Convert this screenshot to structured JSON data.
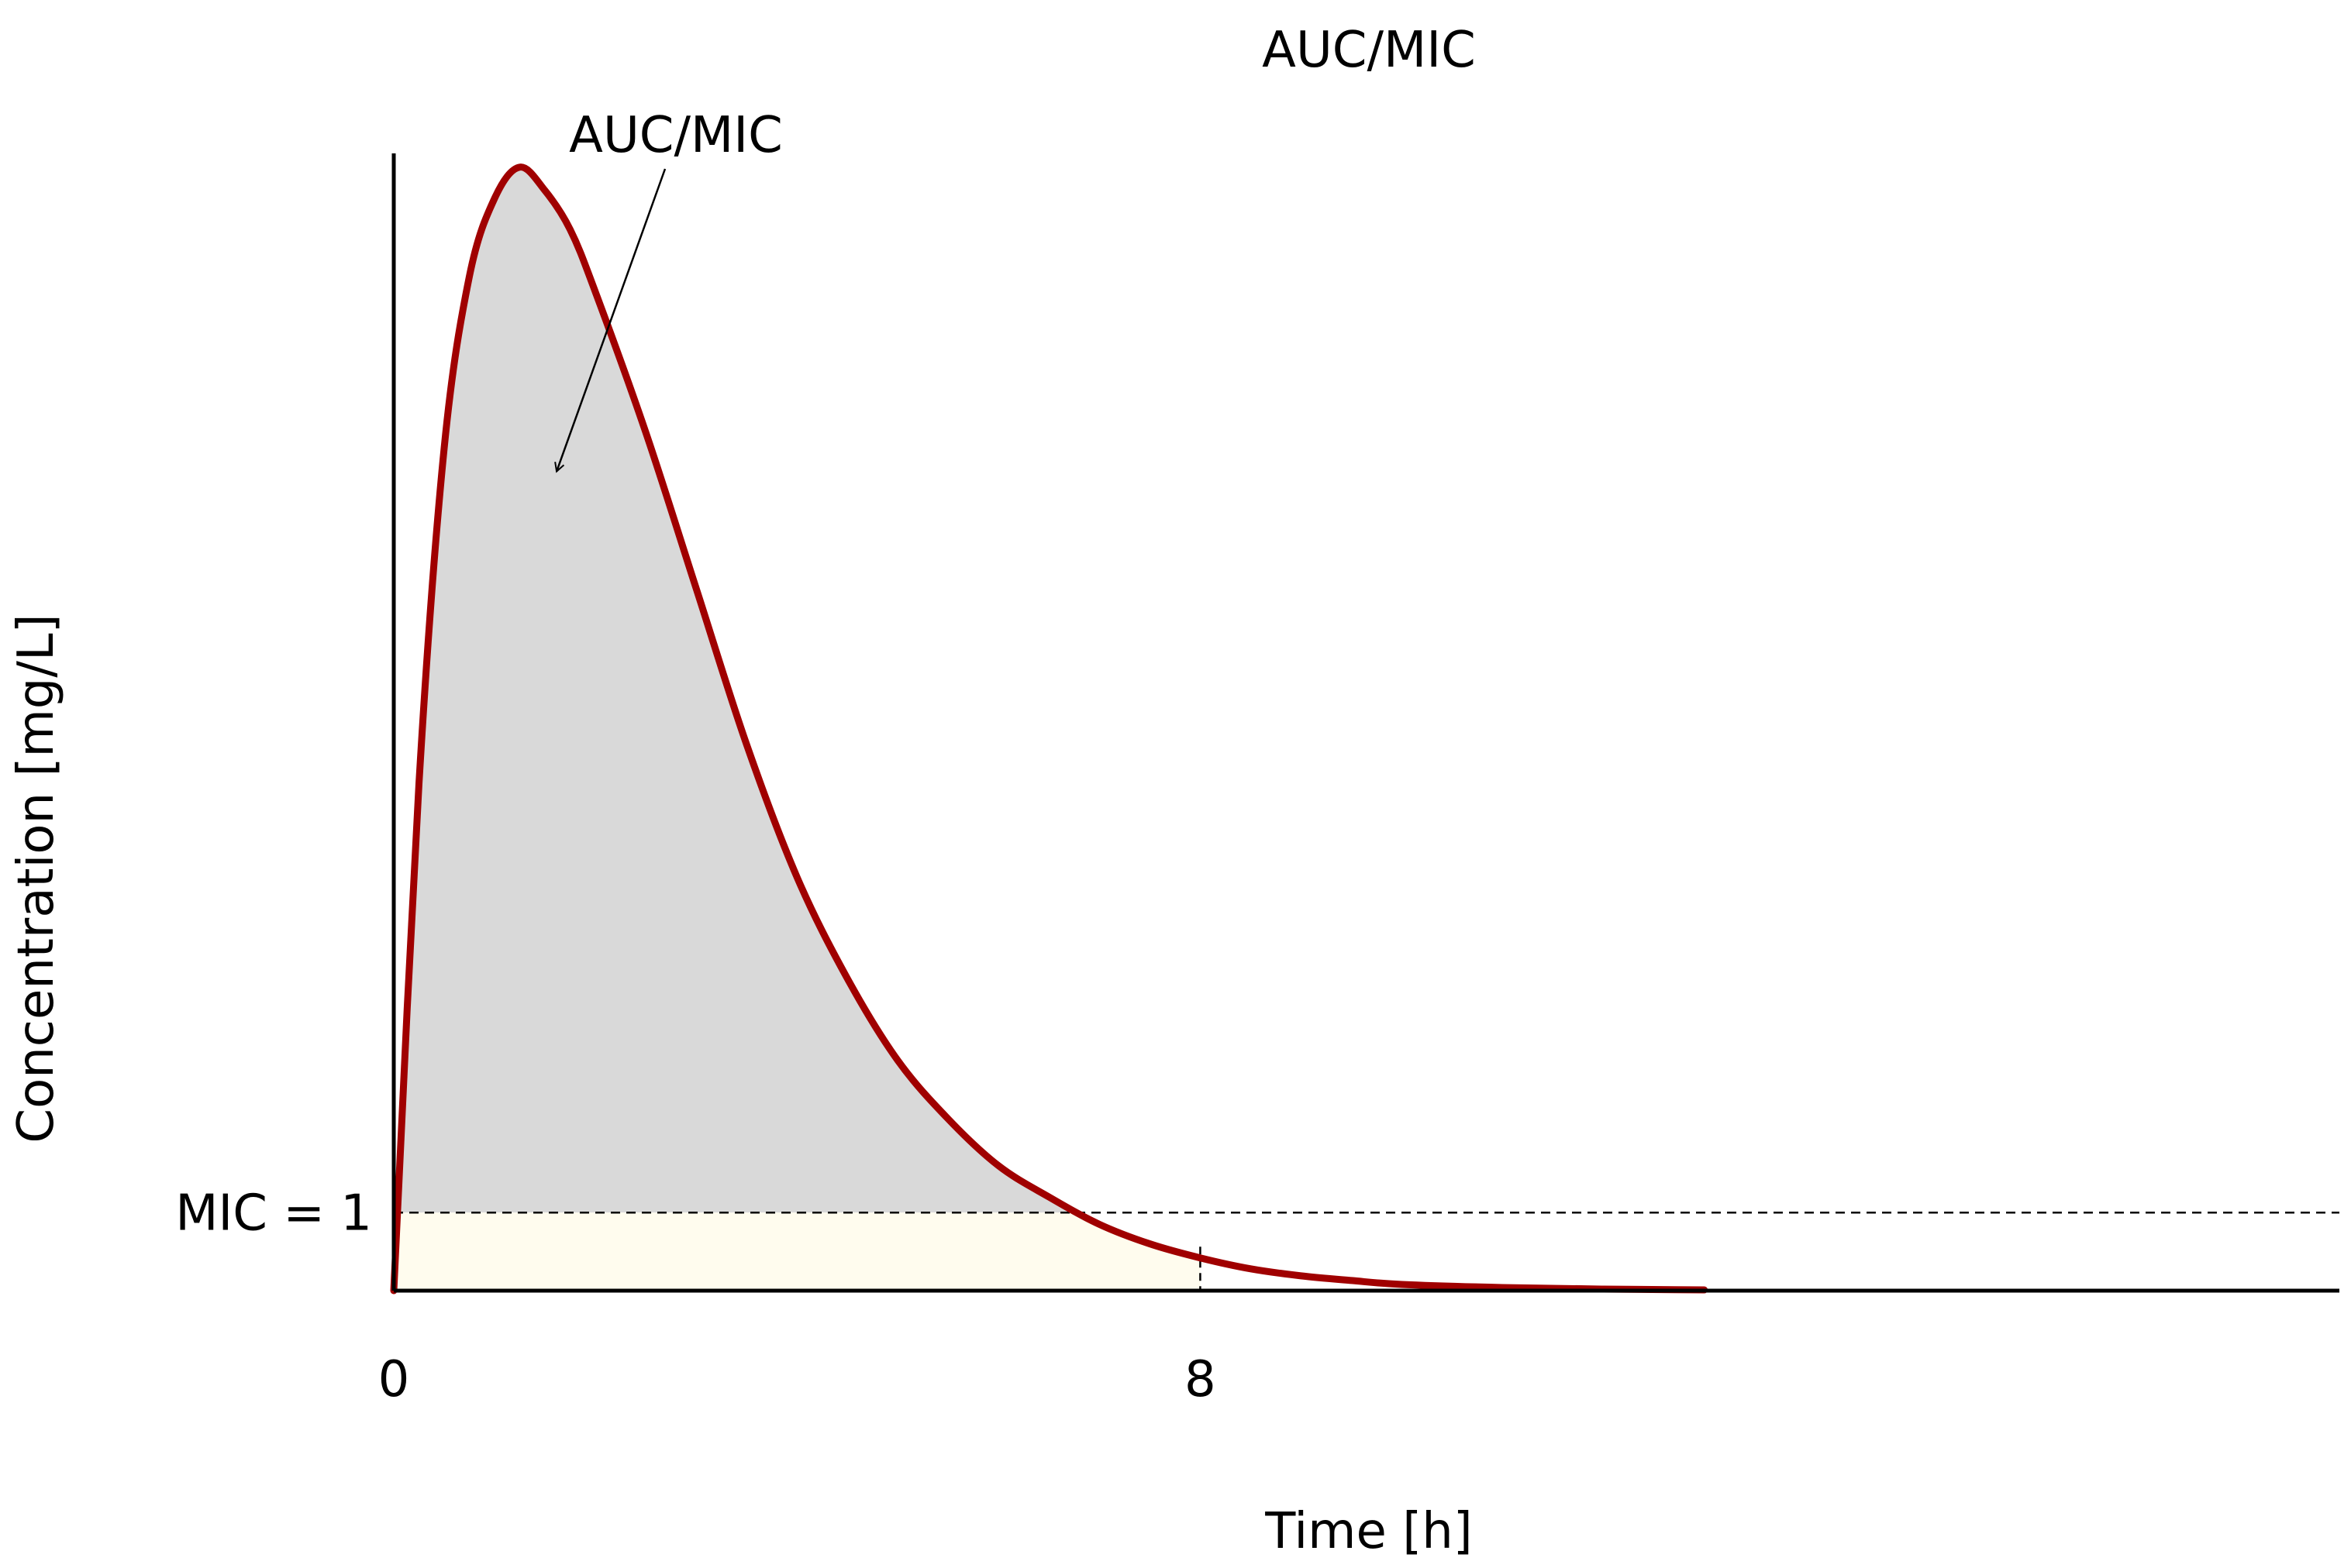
{
  "chart_data": {
    "type": "area",
    "title": "AUC/MIC",
    "xlabel": "Time [h]",
    "ylabel": "Concentration [mg/L]",
    "x_ticks": [
      {
        "value": 0,
        "label": "0"
      },
      {
        "value": 8,
        "label": "8"
      }
    ],
    "mic": {
      "value": 1,
      "label": "MIC = 1"
    },
    "annotation": {
      "text": "AUC/MIC",
      "x": 1.6,
      "y": 10.5
    },
    "shade_until_x": 8,
    "xlim": [
      0,
      19.3
    ],
    "ylim": [
      0,
      15.5
    ],
    "grid": false,
    "series": [
      {
        "color": "#a00000",
        "x": [
          0,
          0.25,
          0.5,
          0.75,
          1.0,
          1.25,
          1.5,
          1.75,
          2.0,
          2.5,
          3.0,
          3.5,
          4.0,
          4.5,
          5.0,
          5.5,
          6.0,
          6.5,
          7.0,
          7.5,
          8.0,
          8.5,
          9.0,
          9.5,
          10.0,
          11.0,
          12.0,
          13.0
        ],
        "values": [
          0,
          6.5,
          10.8,
          13.0,
          14.0,
          14.4,
          14.1,
          13.6,
          12.8,
          11.0,
          9.0,
          7.0,
          5.3,
          4.0,
          2.95,
          2.2,
          1.6,
          1.2,
          0.85,
          0.6,
          0.42,
          0.28,
          0.19,
          0.13,
          0.08,
          0.04,
          0.02,
          0.01
        ]
      }
    ],
    "fill_colors": {
      "above_mic": "#d9d9d9",
      "below_mic": "#fffcee"
    }
  }
}
